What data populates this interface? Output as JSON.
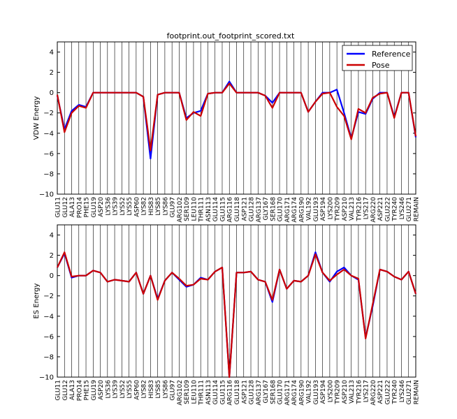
{
  "title": "footprint.out_footprint_scored.txt",
  "chart_data": [
    {
      "type": "line",
      "title": "footprint.out_footprint_scored.txt",
      "ylabel": "VDW Energy",
      "xlabel": "",
      "ylim": [
        -10,
        5
      ],
      "yticks": [
        4,
        2,
        0,
        -2,
        -4,
        -6,
        -8,
        -10
      ],
      "grid": "vertical",
      "legend_placement": "top-right",
      "categories": [
        "GLU11",
        "GLU12",
        "ALA13",
        "PRO14",
        "PHE15",
        "GLU19",
        "ASP20",
        "LYS36",
        "LYS39",
        "LYS52",
        "LYS55",
        "ASP60",
        "LYS82",
        "HIS83",
        "LYS85",
        "LYS86",
        "GLU97",
        "ARG102",
        "SER109",
        "LEU110",
        "THR111",
        "ASN113",
        "GLU114",
        "GLU115",
        "ARG116",
        "GLU118",
        "ASP121",
        "GLU128",
        "ARG137",
        "GLY167",
        "SER168",
        "GLU170",
        "ARG171",
        "ARG174",
        "ARG190",
        "VAL192",
        "GLU193",
        "ASP194",
        "LYS200",
        "TYR209",
        "ASP210",
        "VAL213",
        "TYR216",
        "LYS217",
        "ARG220",
        "ASP221",
        "GLU222",
        "TYR240",
        "LYS246",
        "GLU271",
        "REMAIN"
      ],
      "series": [
        {
          "name": "Reference",
          "color": "#0000ff",
          "values": [
            -0.3,
            -3.6,
            -1.8,
            -1.2,
            -1.4,
            0.0,
            0.0,
            0.0,
            0.0,
            0.0,
            0.0,
            0.0,
            -0.4,
            -6.5,
            -0.2,
            0.0,
            0.0,
            0.0,
            -2.5,
            -2.0,
            -1.8,
            -0.1,
            0.0,
            0.0,
            1.1,
            0.0,
            0.0,
            0.0,
            0.0,
            -0.3,
            -1.0,
            0.0,
            0.0,
            0.0,
            0.0,
            -1.9,
            -0.9,
            0.0,
            0.0,
            0.3,
            -2.0,
            -4.5,
            -1.9,
            -2.1,
            -0.6,
            0.0,
            0.0,
            -2.4,
            0.0,
            0.0,
            -4.4
          ]
        },
        {
          "name": "Pose",
          "color": "#cc0000",
          "values": [
            -0.2,
            -3.9,
            -2.0,
            -1.3,
            -1.5,
            0.0,
            0.0,
            0.0,
            0.0,
            0.0,
            0.0,
            0.0,
            -0.4,
            -5.7,
            -0.2,
            0.0,
            0.0,
            0.0,
            -2.7,
            -1.9,
            -2.3,
            -0.1,
            0.0,
            0.0,
            0.9,
            0.0,
            0.0,
            0.0,
            0.0,
            -0.3,
            -1.5,
            0.0,
            0.0,
            0.0,
            0.0,
            -1.9,
            -0.9,
            -0.1,
            0.0,
            -1.4,
            -2.3,
            -4.6,
            -1.6,
            -2.0,
            -0.5,
            -0.1,
            0.0,
            -2.5,
            0.0,
            0.0,
            -4.3
          ]
        }
      ]
    },
    {
      "type": "line",
      "title": "",
      "ylabel": "ES Energy",
      "xlabel": "",
      "ylim": [
        -10,
        5
      ],
      "yticks": [
        4,
        2,
        0,
        -2,
        -4,
        -6,
        -8,
        -10
      ],
      "grid": "vertical",
      "categories": [
        "GLU11",
        "GLU12",
        "ALA13",
        "PRO14",
        "PHE15",
        "GLU19",
        "ASP20",
        "LYS36",
        "LYS39",
        "LYS52",
        "LYS55",
        "ASP60",
        "LYS82",
        "HIS83",
        "LYS85",
        "LYS86",
        "GLU97",
        "ARG102",
        "SER109",
        "LEU110",
        "THR111",
        "ASN113",
        "GLU114",
        "GLU115",
        "ARG116",
        "GLU118",
        "ASP121",
        "GLU128",
        "ARG137",
        "GLY167",
        "SER168",
        "GLU170",
        "ARG171",
        "ARG174",
        "ARG190",
        "VAL192",
        "GLU193",
        "ASP194",
        "LYS200",
        "TYR209",
        "ASP210",
        "VAL213",
        "TYR216",
        "LYS217",
        "ARG220",
        "ASP221",
        "GLU222",
        "TYR240",
        "LYS246",
        "GLU271",
        "REMAIN"
      ],
      "series": [
        {
          "name": "Reference",
          "color": "#0000ff",
          "values": [
            0.8,
            2.2,
            -0.2,
            0.0,
            0.0,
            0.5,
            0.3,
            -0.6,
            -0.4,
            -0.5,
            -0.6,
            0.3,
            -1.8,
            0.0,
            -2.3,
            -0.5,
            0.3,
            -0.4,
            -1.1,
            -0.9,
            -0.2,
            -0.4,
            0.4,
            0.8,
            -10.0,
            0.3,
            0.3,
            0.4,
            -0.4,
            -0.6,
            -2.6,
            0.6,
            -1.3,
            -0.5,
            -0.6,
            0.0,
            2.3,
            0.3,
            -0.6,
            0.4,
            0.8,
            0.0,
            -0.4,
            -6.1,
            -3.0,
            0.6,
            0.4,
            -0.1,
            -0.4,
            0.4,
            -1.8
          ]
        },
        {
          "name": "Pose",
          "color": "#cc0000",
          "values": [
            0.8,
            2.3,
            -0.1,
            0.0,
            0.0,
            0.5,
            0.3,
            -0.6,
            -0.4,
            -0.5,
            -0.6,
            0.3,
            -1.8,
            0.0,
            -2.4,
            -0.5,
            0.3,
            -0.3,
            -1.0,
            -0.9,
            -0.3,
            -0.4,
            0.4,
            0.8,
            -10.0,
            0.3,
            0.3,
            0.4,
            -0.4,
            -0.6,
            -2.4,
            0.6,
            -1.3,
            -0.5,
            -0.6,
            0.0,
            2.1,
            0.3,
            -0.5,
            0.1,
            0.6,
            0.0,
            -0.3,
            -6.2,
            -2.8,
            0.6,
            0.4,
            -0.1,
            -0.4,
            0.4,
            -1.8
          ]
        }
      ]
    }
  ]
}
